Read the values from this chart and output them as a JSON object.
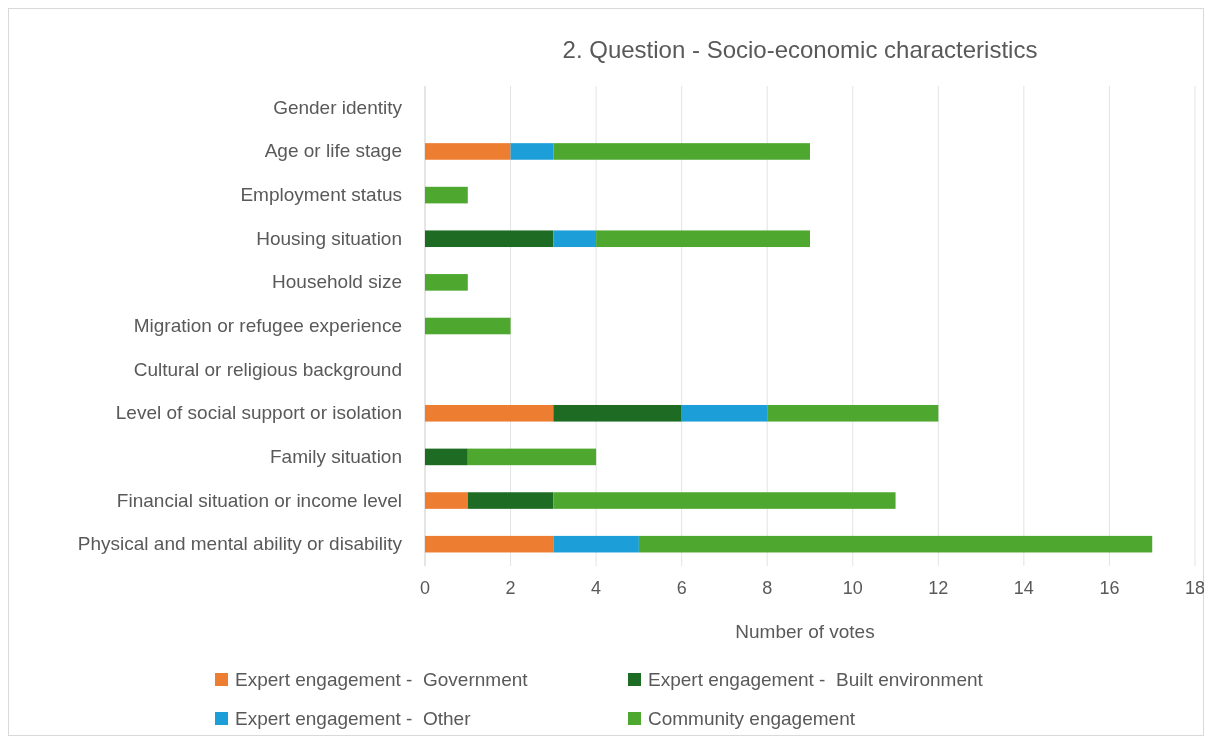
{
  "chart_data": {
    "type": "bar",
    "orientation": "horizontal",
    "stacked": true,
    "title": "2. Question - Socio-economic characteristics",
    "xlabel": "Number of votes",
    "categories": [
      "Gender identity",
      "Age or life stage",
      "Employment status",
      "Housing situation",
      "Household size",
      "Migration or refugee experience",
      "Cultural or religious background",
      "Level of social support or isolation",
      "Family situation",
      "Financial situation or income level",
      "Physical and mental ability or disability"
    ],
    "series": [
      {
        "name": "Expert engagement -  Government",
        "color": "#ed7d31",
        "values": [
          null,
          2,
          null,
          null,
          null,
          null,
          null,
          3,
          null,
          1,
          3
        ]
      },
      {
        "name": "Expert engagement -  Built environment",
        "color": "#1e6b24",
        "values": [
          null,
          null,
          null,
          3,
          null,
          null,
          null,
          3,
          1,
          2,
          null
        ]
      },
      {
        "name": "Expert engagement -  Other",
        "color": "#1c9fd8",
        "values": [
          null,
          1,
          null,
          1,
          null,
          null,
          null,
          2,
          null,
          null,
          2
        ]
      },
      {
        "name": "Community engagement",
        "color": "#4ea72e",
        "values": [
          null,
          6,
          1,
          5,
          1,
          2,
          null,
          4,
          3,
          8,
          12
        ]
      }
    ],
    "xlim": [
      0,
      18
    ],
    "xticks": [
      0,
      2,
      4,
      6,
      8,
      10,
      12,
      14,
      16,
      18
    ],
    "grid": "x",
    "legend": "bottom"
  }
}
